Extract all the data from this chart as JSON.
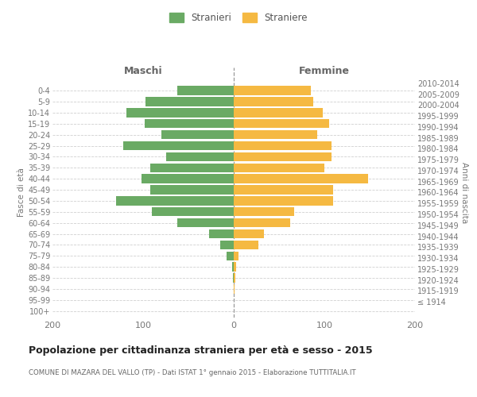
{
  "age_groups": [
    "100+",
    "95-99",
    "90-94",
    "85-89",
    "80-84",
    "75-79",
    "70-74",
    "65-69",
    "60-64",
    "55-59",
    "50-54",
    "45-49",
    "40-44",
    "35-39",
    "30-34",
    "25-29",
    "20-24",
    "15-19",
    "10-14",
    "5-9",
    "0-4"
  ],
  "birth_years": [
    "≤ 1914",
    "1915-1919",
    "1920-1924",
    "1925-1929",
    "1930-1934",
    "1935-1939",
    "1940-1944",
    "1945-1949",
    "1950-1954",
    "1955-1959",
    "1960-1964",
    "1965-1969",
    "1970-1974",
    "1975-1979",
    "1980-1984",
    "1985-1989",
    "1990-1994",
    "1995-1999",
    "2000-2004",
    "2005-2009",
    "2010-2014"
  ],
  "males": [
    0,
    0,
    0,
    1,
    2,
    8,
    15,
    27,
    62,
    90,
    130,
    92,
    102,
    92,
    75,
    122,
    80,
    98,
    118,
    97,
    62
  ],
  "females": [
    0,
    0,
    1,
    2,
    3,
    5,
    27,
    33,
    62,
    67,
    110,
    110,
    148,
    100,
    108,
    108,
    92,
    105,
    98,
    88,
    85
  ],
  "male_color": "#6aaa64",
  "female_color": "#f5b942",
  "background_color": "#ffffff",
  "grid_color": "#d0d0d0",
  "title": "Popolazione per cittadinanza straniera per età e sesso - 2015",
  "subtitle": "COMUNE DI MAZARA DEL VALLO (TP) - Dati ISTAT 1° gennaio 2015 - Elaborazione TUTTITALIA.IT",
  "xlabel_left": "Maschi",
  "xlabel_right": "Femmine",
  "ylabel_left": "Fasce di età",
  "ylabel_right": "Anni di nascita",
  "legend_males": "Stranieri",
  "legend_females": "Straniere",
  "xlim": 200,
  "bar_height": 0.82
}
